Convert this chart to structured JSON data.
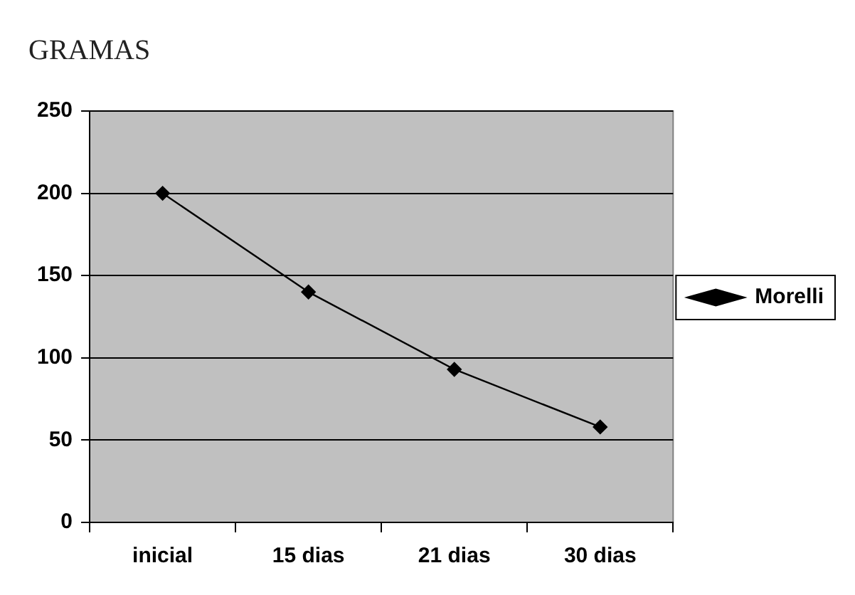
{
  "chart_data": {
    "type": "line",
    "title": "GRAMAS",
    "categories": [
      "inicial",
      "15 dias",
      "21 dias",
      "30 dias"
    ],
    "series": [
      {
        "name": "Morelli",
        "color": "#000000",
        "values": [
          200,
          140,
          93,
          58
        ]
      }
    ],
    "ylim": [
      0,
      250
    ],
    "yticks": [
      0,
      50,
      100,
      150,
      200,
      250
    ],
    "grid": "y",
    "legend": "right",
    "marker": "diamond",
    "line_style": "solid"
  }
}
